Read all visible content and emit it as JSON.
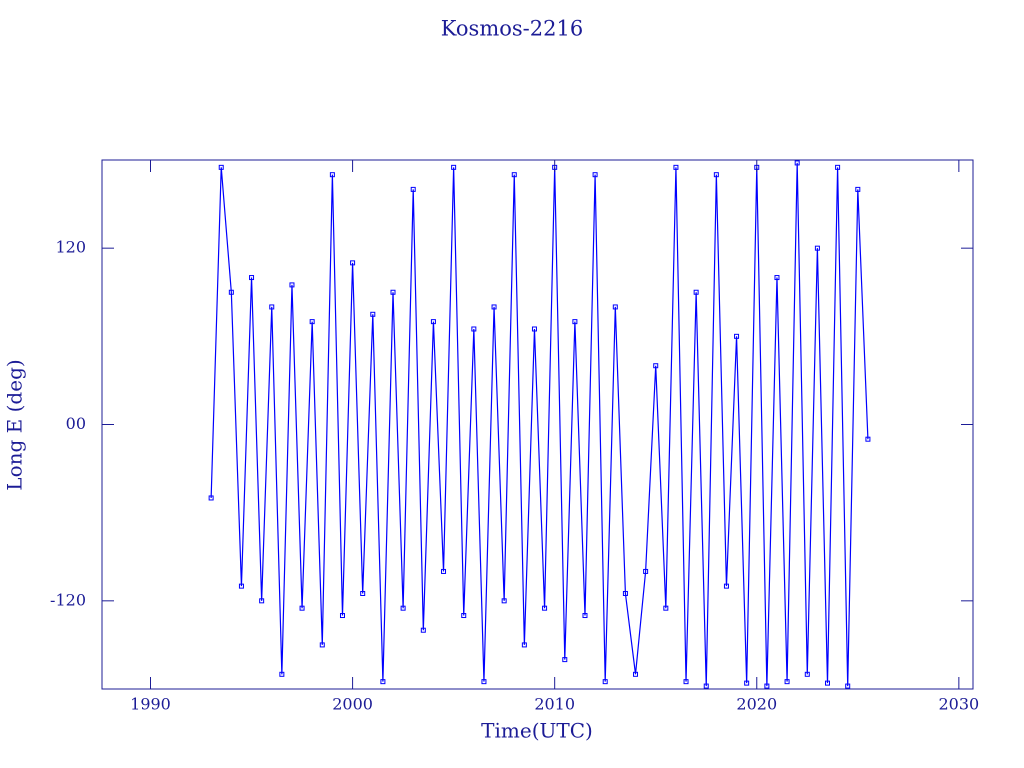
{
  "chart_data": {
    "type": "line",
    "title": "Kosmos-2216",
    "x_label": "Time(UTC)",
    "y_label": "Long E (deg)",
    "xlim": [
      1987.6,
      2030.7
    ],
    "ylim": [
      -180,
      180
    ],
    "xticks": [
      1990,
      2000,
      2010,
      2020,
      2030
    ],
    "yticks": [
      -120,
      {
        "value": 0,
        "label": "00"
      },
      120
    ],
    "series": [
      {
        "color": "#0000ff",
        "x": [
          1993,
          1993.5,
          1994,
          1994.5,
          1995,
          1995.5,
          1996,
          1996.5,
          1997,
          1997.5,
          1998,
          1998.5,
          1999,
          1999.5,
          2000,
          2000.5,
          2001,
          2001.5,
          2002,
          2002.5,
          2003,
          2003.5,
          2004,
          2004.5,
          2005,
          2005.5,
          2006,
          2006.5,
          2007,
          2007.5,
          2008,
          2008.5,
          2009,
          2009.5,
          2010,
          2010.5,
          2011,
          2011.5,
          2012,
          2012.5,
          2013,
          2013.5,
          2014,
          2014.5,
          2015,
          2015.5,
          2016,
          2016.5,
          2017,
          2017.5,
          2018,
          2018.5,
          2019,
          2019.5,
          2020,
          2020.5,
          2021,
          2021.5,
          2022,
          2022.5,
          2023,
          2023.5,
          2024,
          2024.5,
          2025,
          2025.5
        ],
        "values": [
          -50,
          175,
          90,
          -110,
          100,
          -120,
          80,
          -170,
          95,
          -125,
          70,
          -150,
          170,
          -130,
          110,
          -115,
          75,
          -175,
          90,
          -125,
          160,
          -140,
          70,
          -100,
          175,
          -130,
          65,
          -175,
          80,
          -120,
          170,
          -150,
          65,
          -125,
          175,
          -160,
          70,
          -130,
          170,
          -175,
          80,
          -115,
          -170,
          -100,
          40,
          -125,
          175,
          -175,
          90,
          -178,
          170,
          -110,
          60,
          -176,
          175,
          -178,
          100,
          -175,
          178,
          -170,
          120,
          -176,
          175,
          -178,
          160,
          -10
        ]
      }
    ]
  }
}
